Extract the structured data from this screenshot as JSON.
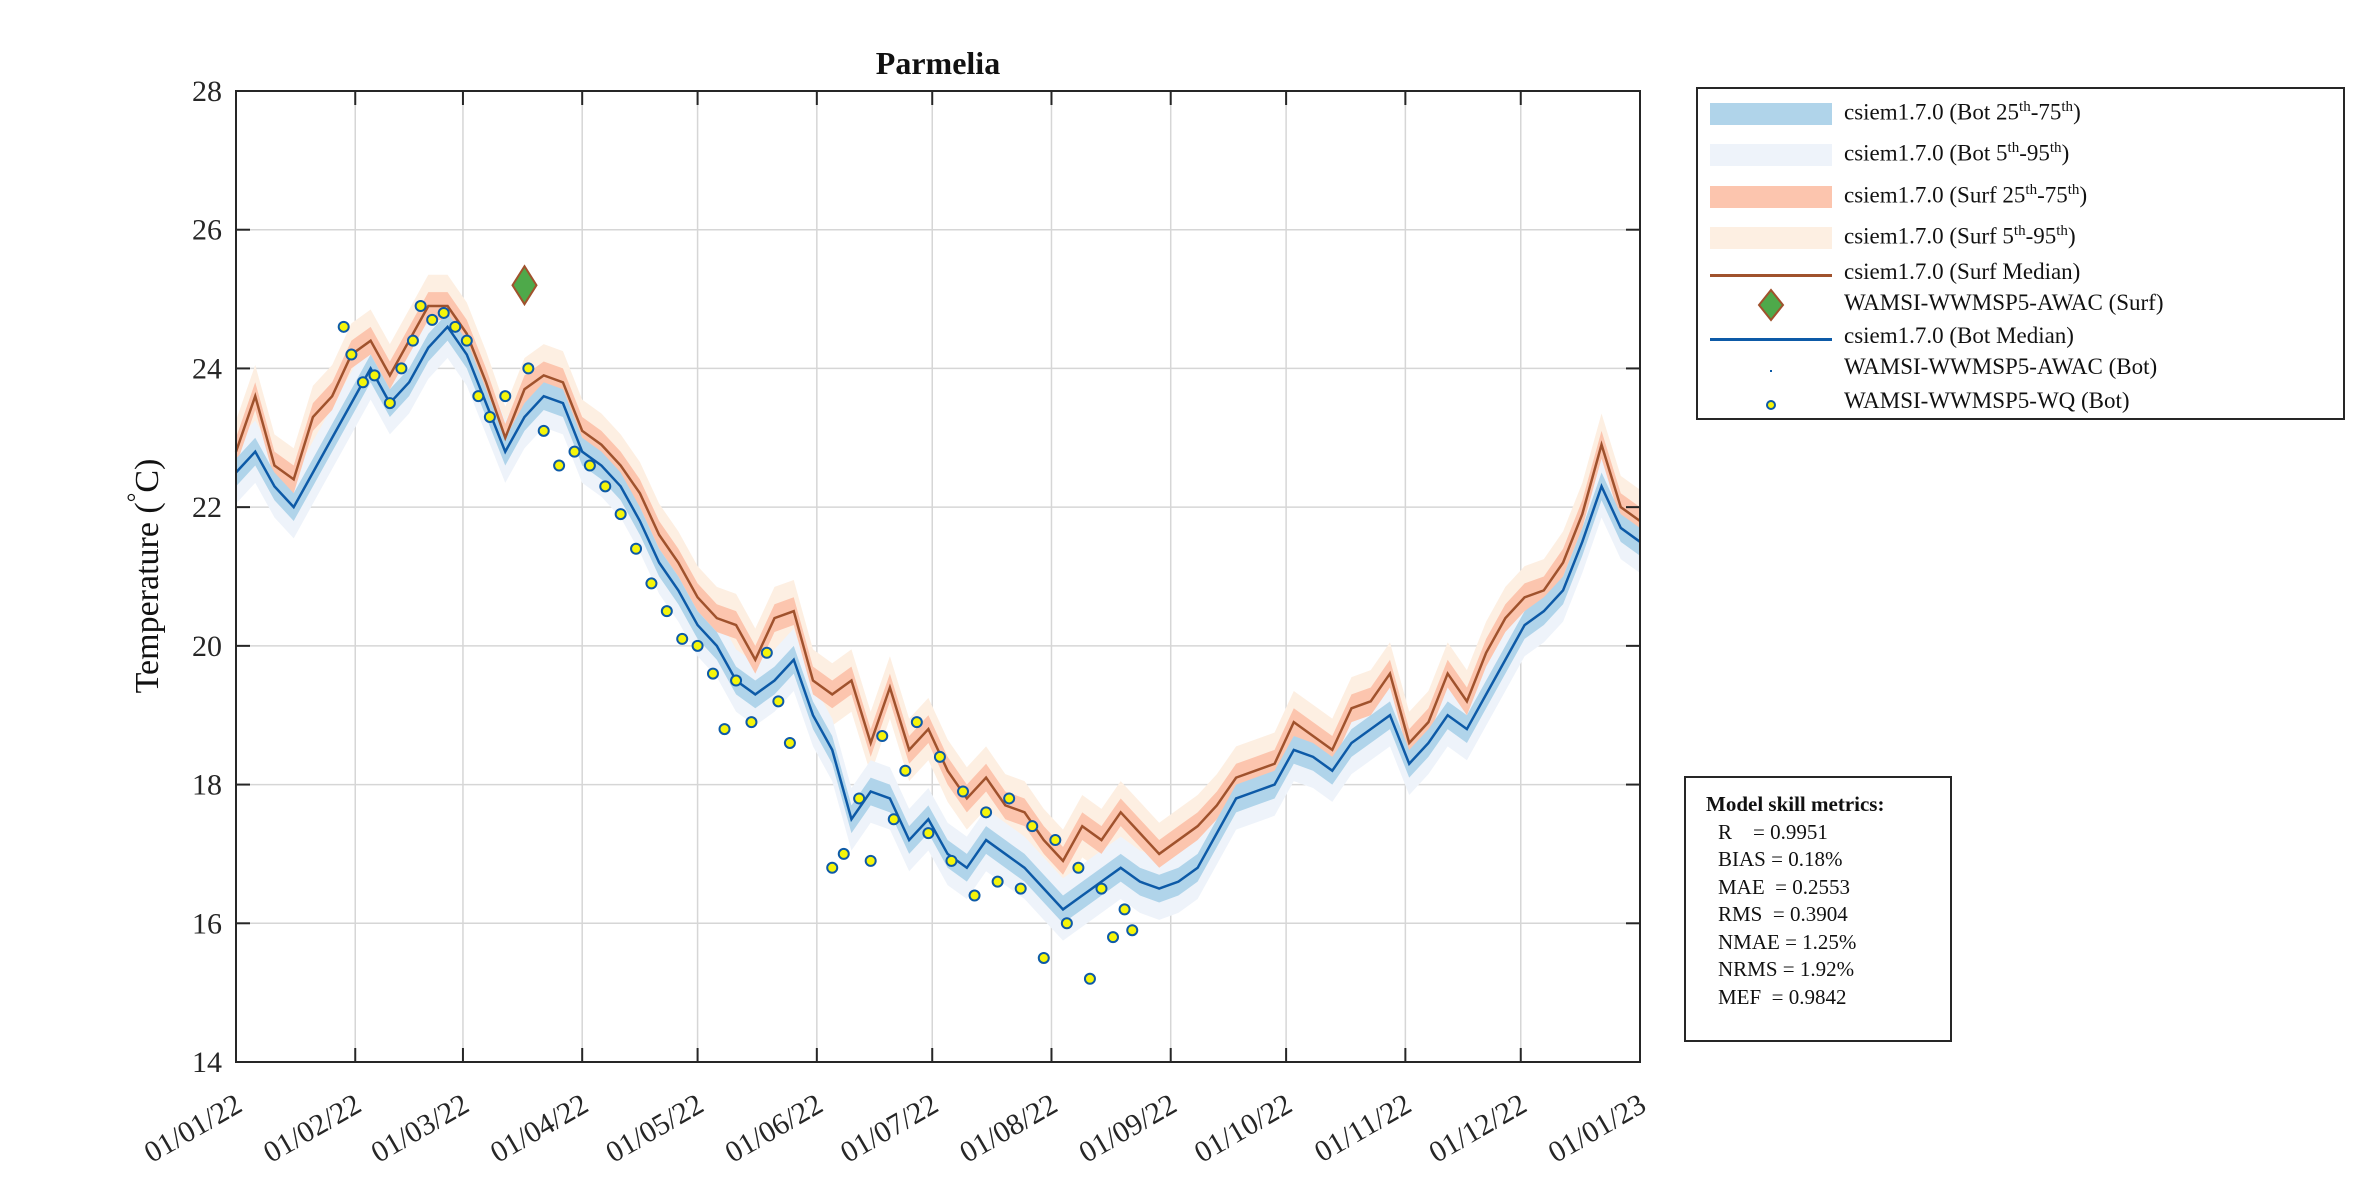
{
  "chart_data": {
    "type": "line",
    "title": "Parmelia",
    "xlabel": "",
    "ylabel": "Temperature (°C)",
    "ylabel_parts": {
      "main": "Temperature (",
      "degree": "°",
      "unit": "C)"
    },
    "ylim": [
      14,
      28
    ],
    "xlim_days": [
      0,
      365
    ],
    "yticks": [
      "14",
      "16",
      "18",
      "20",
      "22",
      "24",
      "26",
      "28"
    ],
    "xticks": [
      {
        "label": "01/01/22",
        "day": 0
      },
      {
        "label": "01/02/22",
        "day": 31
      },
      {
        "label": "01/03/22",
        "day": 59
      },
      {
        "label": "01/04/22",
        "day": 90
      },
      {
        "label": "01/05/22",
        "day": 120
      },
      {
        "label": "01/06/22",
        "day": 151
      },
      {
        "label": "01/07/22",
        "day": 181
      },
      {
        "label": "01/08/22",
        "day": 212
      },
      {
        "label": "01/09/22",
        "day": 243
      },
      {
        "label": "01/10/22",
        "day": 273
      },
      {
        "label": "01/11/22",
        "day": 304
      },
      {
        "label": "01/12/22",
        "day": 334
      },
      {
        "label": "01/01/23",
        "day": 365
      }
    ],
    "grid": true,
    "legend_placement": "outside-top-right",
    "series_days_step": 5,
    "bot_median": [
      22.5,
      22.8,
      22.3,
      22.0,
      22.5,
      23.0,
      23.5,
      24.0,
      23.5,
      23.8,
      24.3,
      24.6,
      24.2,
      23.5,
      22.8,
      23.3,
      23.6,
      23.5,
      22.8,
      22.6,
      22.3,
      21.8,
      21.2,
      20.8,
      20.3,
      20.0,
      19.5,
      19.3,
      19.5,
      19.8,
      19.0,
      18.5,
      17.5,
      17.9,
      17.8,
      17.2,
      17.5,
      17.0,
      16.8,
      17.2,
      17.0,
      16.8,
      16.5,
      16.2,
      16.4,
      16.6,
      16.8,
      16.6,
      16.5,
      16.6,
      16.8,
      17.3,
      17.8,
      17.9,
      18.0,
      18.5,
      18.4,
      18.2,
      18.6,
      18.8,
      19.0,
      18.3,
      18.6,
      19.0,
      18.8,
      19.3,
      19.8,
      20.3,
      20.5,
      20.8,
      21.5,
      22.3,
      21.7,
      21.5
    ],
    "surf_median": [
      22.8,
      23.6,
      22.6,
      22.4,
      23.3,
      23.6,
      24.2,
      24.4,
      23.9,
      24.4,
      24.9,
      24.9,
      24.5,
      23.8,
      23.0,
      23.7,
      23.9,
      23.8,
      23.1,
      22.9,
      22.6,
      22.2,
      21.6,
      21.2,
      20.7,
      20.4,
      20.3,
      19.8,
      20.4,
      20.5,
      19.5,
      19.3,
      19.5,
      18.6,
      19.4,
      18.5,
      18.8,
      18.2,
      17.8,
      18.1,
      17.7,
      17.6,
      17.2,
      16.9,
      17.4,
      17.2,
      17.6,
      17.3,
      17.0,
      17.2,
      17.4,
      17.7,
      18.1,
      18.2,
      18.3,
      18.9,
      18.7,
      18.5,
      19.1,
      19.2,
      19.6,
      18.6,
      18.9,
      19.6,
      19.2,
      19.9,
      20.4,
      20.7,
      20.8,
      21.2,
      21.9,
      22.9,
      22.0,
      21.8
    ],
    "band_spread": {
      "bot_25_75": 0.2,
      "bot_5_95": 0.45,
      "surf_25_75": 0.2,
      "surf_5_95": 0.45
    },
    "obs_awac_surf": [
      {
        "day": 75,
        "value": 25.2
      }
    ],
    "obs_wq_bot": [
      {
        "day": 28,
        "value": 24.6
      },
      {
        "day": 30,
        "value": 24.2
      },
      {
        "day": 33,
        "value": 23.8
      },
      {
        "day": 36,
        "value": 23.9
      },
      {
        "day": 40,
        "value": 23.5
      },
      {
        "day": 43,
        "value": 24.0
      },
      {
        "day": 46,
        "value": 24.4
      },
      {
        "day": 48,
        "value": 24.9
      },
      {
        "day": 51,
        "value": 24.7
      },
      {
        "day": 54,
        "value": 24.8
      },
      {
        "day": 57,
        "value": 24.6
      },
      {
        "day": 60,
        "value": 24.4
      },
      {
        "day": 63,
        "value": 23.6
      },
      {
        "day": 66,
        "value": 23.3
      },
      {
        "day": 70,
        "value": 23.6
      },
      {
        "day": 76,
        "value": 24.0
      },
      {
        "day": 80,
        "value": 23.1
      },
      {
        "day": 84,
        "value": 22.6
      },
      {
        "day": 88,
        "value": 22.8
      },
      {
        "day": 92,
        "value": 22.6
      },
      {
        "day": 96,
        "value": 22.3
      },
      {
        "day": 100,
        "value": 21.9
      },
      {
        "day": 104,
        "value": 21.4
      },
      {
        "day": 108,
        "value": 20.9
      },
      {
        "day": 112,
        "value": 20.5
      },
      {
        "day": 116,
        "value": 20.1
      },
      {
        "day": 120,
        "value": 20.0
      },
      {
        "day": 124,
        "value": 19.6
      },
      {
        "day": 127,
        "value": 18.8
      },
      {
        "day": 130,
        "value": 19.5
      },
      {
        "day": 134,
        "value": 18.9
      },
      {
        "day": 138,
        "value": 19.9
      },
      {
        "day": 141,
        "value": 19.2
      },
      {
        "day": 144,
        "value": 18.6
      },
      {
        "day": 155,
        "value": 16.8
      },
      {
        "day": 158,
        "value": 17.0
      },
      {
        "day": 162,
        "value": 17.8
      },
      {
        "day": 165,
        "value": 16.9
      },
      {
        "day": 168,
        "value": 18.7
      },
      {
        "day": 171,
        "value": 17.5
      },
      {
        "day": 174,
        "value": 18.2
      },
      {
        "day": 177,
        "value": 18.9
      },
      {
        "day": 180,
        "value": 17.3
      },
      {
        "day": 183,
        "value": 18.4
      },
      {
        "day": 186,
        "value": 16.9
      },
      {
        "day": 189,
        "value": 17.9
      },
      {
        "day": 192,
        "value": 16.4
      },
      {
        "day": 195,
        "value": 17.6
      },
      {
        "day": 198,
        "value": 16.6
      },
      {
        "day": 201,
        "value": 17.8
      },
      {
        "day": 204,
        "value": 16.5
      },
      {
        "day": 207,
        "value": 17.4
      },
      {
        "day": 210,
        "value": 15.5
      },
      {
        "day": 213,
        "value": 17.2
      },
      {
        "day": 216,
        "value": 16.0
      },
      {
        "day": 219,
        "value": 16.8
      },
      {
        "day": 222,
        "value": 15.2
      },
      {
        "day": 225,
        "value": 16.5
      },
      {
        "day": 228,
        "value": 15.8
      },
      {
        "day": 231,
        "value": 16.2
      },
      {
        "day": 233,
        "value": 15.9
      }
    ],
    "colors": {
      "bot_25_75": "#b0d4ea",
      "bot_5_95": "#eef3fa",
      "surf_25_75": "#fcc5ae",
      "surf_5_95": "#fdefe2",
      "surf_median": "#a0522d",
      "bot_median": "#0d5aa7",
      "awac_surf_fill": "#4ea94a",
      "awac_surf_edge": "#a0522d",
      "wq_fill": "#f5f50a",
      "wq_edge": "#0d5aa7",
      "grid": "#d6d6d6"
    }
  },
  "legend": {
    "items": [
      {
        "base": "csiem1.7.0 (Bot 25",
        "sup1": "th",
        "mid": "-75",
        "sup2": "th",
        "end": ")"
      },
      {
        "base": "csiem1.7.0 (Bot 5",
        "sup1": "th",
        "mid": "-95",
        "sup2": "th",
        "end": ")"
      },
      {
        "base": "csiem1.7.0 (Surf 25",
        "sup1": "th",
        "mid": "-75",
        "sup2": "th",
        "end": ")"
      },
      {
        "base": "csiem1.7.0 (Surf 5",
        "sup1": "th",
        "mid": "-95",
        "sup2": "th",
        "end": ")"
      },
      {
        "base": "csiem1.7.0 (Surf Median)"
      },
      {
        "base": "WAMSI-WWMSP5-AWAC (Surf)"
      },
      {
        "base": "csiem1.7.0 (Bot Median)"
      },
      {
        "base": "WAMSI-WWMSP5-AWAC (Bot)"
      },
      {
        "base": "WAMSI-WWMSP5-WQ (Bot)"
      }
    ]
  },
  "metrics": {
    "title": "Model skill metrics:",
    "rows": [
      "R    = 0.9951",
      "BIAS = 0.18%",
      "MAE  = 0.2553",
      "RMS  = 0.3904",
      "NMAE = 1.25%",
      "NRMS = 1.92%",
      "MEF  = 0.9842"
    ]
  }
}
